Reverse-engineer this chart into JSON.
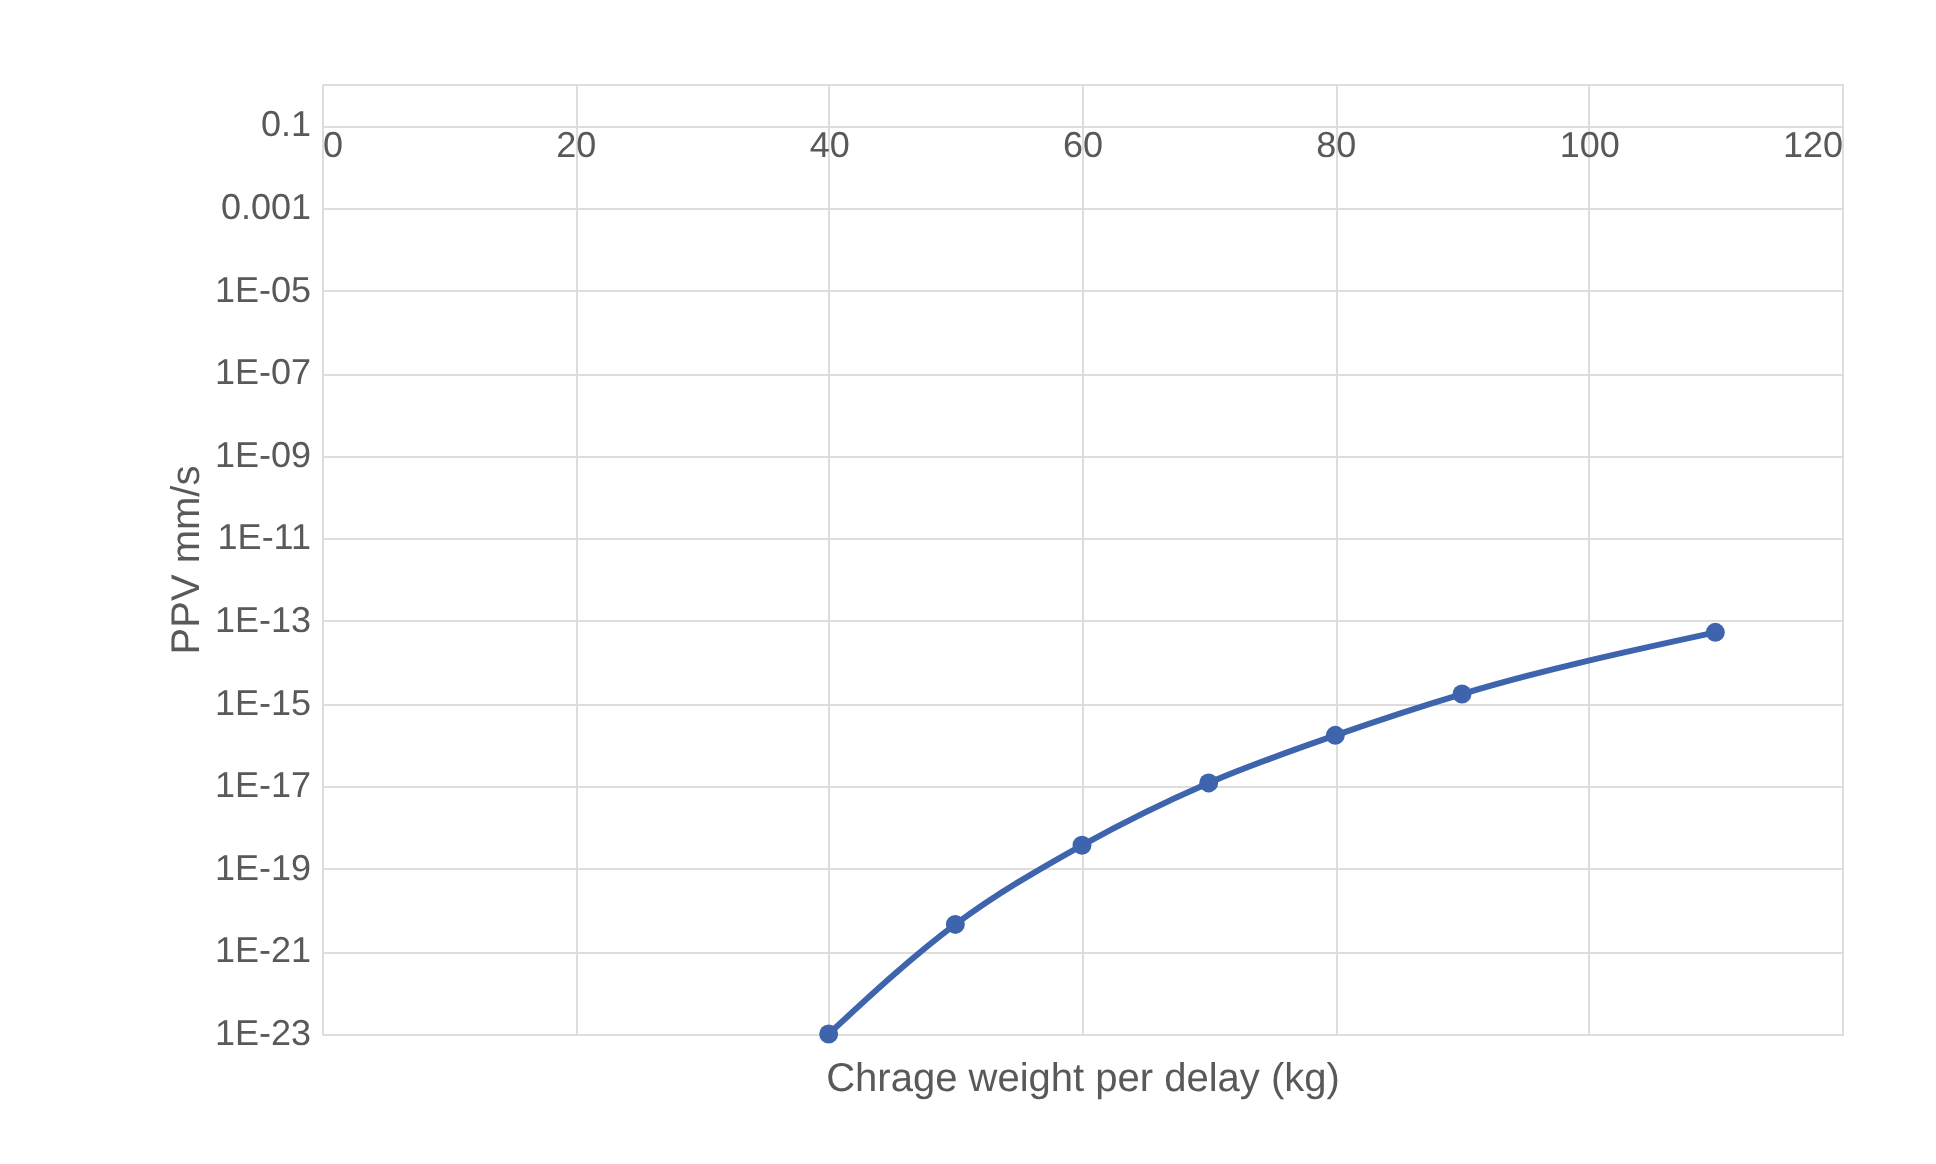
{
  "chart_data": {
    "type": "line",
    "xlabel": "Chrage weight per delay (kg)",
    "ylabel": "PPV mm/s",
    "x": [
      40,
      50,
      60,
      70,
      80,
      90,
      110
    ],
    "series": [
      {
        "color": "#3d64ad",
        "values": [
          1e-23,
          4.5e-21,
          3.7e-19,
          1.2e-17,
          1.7e-16,
          1.7e-15,
          5.3e-14
        ]
      }
    ],
    "xlim": [
      0,
      120
    ],
    "xticks": [
      0,
      20,
      40,
      60,
      80,
      100,
      120
    ],
    "ylim": [
      1e-23,
      1
    ],
    "yticks": [
      0.1,
      0.001,
      {
        "value": 1e-05,
        "label": "1E-05"
      },
      {
        "value": 1e-07,
        "label": "1E-07"
      },
      {
        "value": 1e-09,
        "label": "1E-09"
      },
      {
        "value": 1e-11,
        "label": "1E-11"
      },
      {
        "value": 1e-13,
        "label": "1E-13"
      },
      {
        "value": 1e-15,
        "label": "1E-15"
      },
      {
        "value": 1e-17,
        "label": "1E-17"
      },
      {
        "value": 1e-19,
        "label": "1E-19"
      },
      {
        "value": 1e-21,
        "label": "1E-21"
      },
      {
        "value": 1e-23,
        "label": "1E-23"
      }
    ],
    "log": "y",
    "grid": true,
    "marker": "circle",
    "line_style": "solid"
  }
}
